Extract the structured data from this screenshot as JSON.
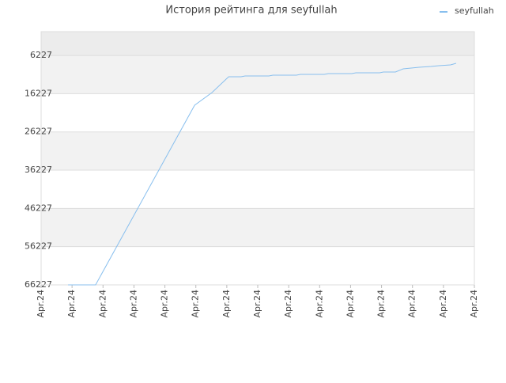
{
  "chart_data": {
    "type": "line",
    "title": "История рейтинга для seyfullah",
    "x": [
      0.87,
      1.76,
      4.96,
      5.52,
      6.06,
      6.46,
      6.59,
      7.36,
      7.49,
      8.25,
      8.38,
      9.15,
      9.28,
      10.04,
      10.17,
      10.94,
      11.06,
      11.45,
      11.7,
      11.96,
      12.21,
      12.6,
      12.85,
      13.23,
      13.41
    ],
    "series": [
      {
        "name": "seyfullah",
        "color": "#88bfee",
        "values": [
          66227,
          66227,
          19247,
          15936,
          11797,
          11797,
          11590,
          11590,
          11383,
          11383,
          11176,
          11176,
          10969,
          10969,
          10762,
          10762,
          10555,
          10555,
          9727,
          9520,
          9313,
          9106,
          8899,
          8692,
          8278
        ]
      }
    ],
    "xlim": [
      0,
      14
    ],
    "xticks": [
      {
        "value": 0,
        "label": "Apr.24"
      },
      {
        "value": 1,
        "label": "Apr.24"
      },
      {
        "value": 2,
        "label": "Apr.24"
      },
      {
        "value": 3,
        "label": "Apr.24"
      },
      {
        "value": 4,
        "label": "Apr.24"
      },
      {
        "value": 5,
        "label": "Apr.24"
      },
      {
        "value": 6,
        "label": "Apr.24"
      },
      {
        "value": 7,
        "label": "Apr.24"
      },
      {
        "value": 8,
        "label": "Apr.24"
      },
      {
        "value": 9,
        "label": "Apr.24"
      },
      {
        "value": 10,
        "label": "Apr.24"
      },
      {
        "value": 11,
        "label": "Apr.24"
      },
      {
        "value": 12,
        "label": "Apr.24"
      },
      {
        "value": 13,
        "label": "Apr.24"
      },
      {
        "value": 14,
        "label": "Apr.24"
      }
    ],
    "ylim": [
      66227,
      0
    ],
    "yticks": [
      6227,
      16227,
      26227,
      36227,
      46227,
      56227,
      66227
    ],
    "grid": true,
    "legend": "top-right"
  }
}
